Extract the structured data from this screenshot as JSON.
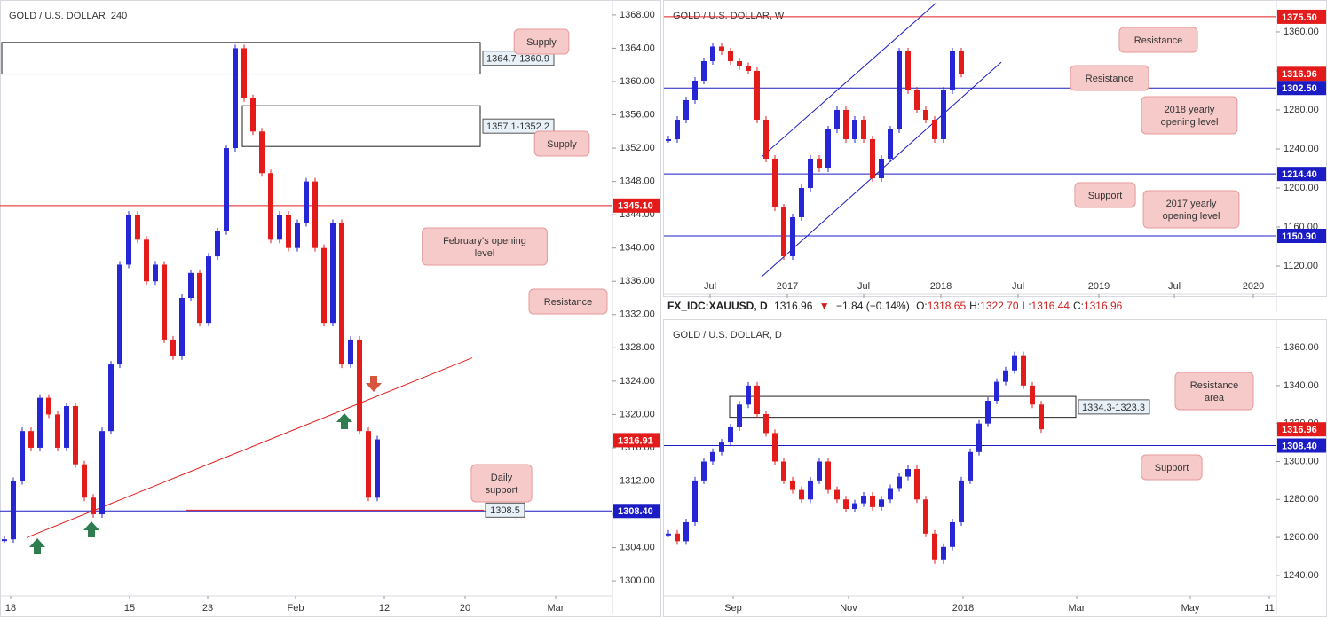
{
  "header": {
    "symbol": "FX_IDC:XAUUSD, D",
    "price": "1316.96",
    "arrow": "▼",
    "change": "−1.84 (−0.14%)",
    "ohlc": [
      {
        "key": "O:",
        "value": "1318.65"
      },
      {
        "key": "H:",
        "value": "1322.70"
      },
      {
        "key": "L:",
        "value": "1316.44"
      },
      {
        "key": "C:",
        "value": "1316.96"
      }
    ]
  },
  "chart_data": [
    {
      "type": "candlestick",
      "title": "GOLD / U.S. DOLLAR, 240",
      "up_color": "#2626d4",
      "down_color": "#e31b1b",
      "xlim": [
        0,
        69
      ],
      "ylim": [
        1298.2,
        1369.8
      ],
      "xticks": [
        {
          "value": 1.2,
          "label": "18"
        },
        {
          "value": 14.6,
          "label": "15"
        },
        {
          "value": 23.4,
          "label": "23"
        },
        {
          "value": 33.3,
          "label": "Feb"
        },
        {
          "value": 43.3,
          "label": "12"
        },
        {
          "value": 52.4,
          "label": "20"
        },
        {
          "value": 62.6,
          "label": "Mar"
        }
      ],
      "yticks": [
        {
          "value": 1300,
          "label": "1300.00"
        },
        {
          "value": 1304,
          "label": "1304.00"
        },
        {
          "value": 1308,
          "label": "1308.00"
        },
        {
          "value": 1312,
          "label": "1312.00"
        },
        {
          "value": 1316,
          "label": "1316.00"
        },
        {
          "value": 1320,
          "label": "1320.00"
        },
        {
          "value": 1324,
          "label": "1324.00"
        },
        {
          "value": 1328,
          "label": "1328.00"
        },
        {
          "value": 1332,
          "label": "1332.00"
        },
        {
          "value": 1336,
          "label": "1336.00"
        },
        {
          "value": 1340,
          "label": "1340.00"
        },
        {
          "value": 1344,
          "label": "1344.00"
        },
        {
          "value": 1348,
          "label": "1348.00"
        },
        {
          "value": 1352,
          "label": "1352.00"
        },
        {
          "value": 1356,
          "label": "1356.00"
        },
        {
          "value": 1360,
          "label": "1360.00"
        },
        {
          "value": 1364,
          "label": "1364.00"
        },
        {
          "value": 1368,
          "label": "1368.00"
        }
      ],
      "closes": [
        1305,
        1312,
        1318,
        1316,
        1322,
        1320,
        1316,
        1321,
        1314,
        1310,
        1308,
        1318,
        1326,
        1338,
        1344,
        1341,
        1336,
        1338,
        1329,
        1327,
        1334,
        1337,
        1331,
        1339,
        1342,
        1352,
        1364,
        1358,
        1354,
        1349,
        1341,
        1344,
        1340,
        1343,
        1348,
        1340,
        1331,
        1343,
        1326,
        1329,
        1318,
        1310,
        1317
      ],
      "zones": [
        {
          "label": "1364.7-1360.9",
          "top": 1364.7,
          "bottom": 1360.9,
          "x_range": [
            0.2,
            54.1
          ]
        },
        {
          "label": "1357.1-1352.2",
          "top": 1357.1,
          "bottom": 1352.2,
          "x_range": [
            27.3,
            54.1
          ]
        }
      ],
      "levels": [
        {
          "value": 1345.1,
          "label": "1345.10",
          "color": "#e31b1b",
          "tag": "axis",
          "line": true
        },
        {
          "value": 1316.91,
          "label": "1316.91",
          "color": "#e31b1b",
          "tag": "axis",
          "line": false
        },
        {
          "value": 1308.4,
          "label": "1308.40",
          "color": "#1c1cc4",
          "tag": "axis",
          "line": true
        },
        {
          "value": 1308.5,
          "label": "1308.5",
          "color": "#e31b1b",
          "tag": "inline",
          "line": true,
          "x_range": [
            21,
            54.5
          ]
        }
      ],
      "trendlines": [
        {
          "x": [
            3,
            53.2
          ],
          "y": [
            1305.2,
            1326.8
          ],
          "color": "#e31b1b"
        }
      ],
      "annotations": [
        [
          "Supply"
        ],
        [
          "Supply"
        ],
        [
          "February's opening",
          "level"
        ],
        [
          "Resistance"
        ],
        [
          "Daily",
          "support"
        ]
      ]
    },
    {
      "type": "candlestick",
      "title": "GOLD / U.S. DOLLAR, W",
      "up_color": "#2626d4",
      "down_color": "#e31b1b",
      "xlim": [
        0,
        69
      ],
      "ylim": [
        1090.9,
        1392.7
      ],
      "xticks": [
        {
          "value": 5.2,
          "label": "Jul"
        },
        {
          "value": 13.9,
          "label": "2017"
        },
        {
          "value": 22.5,
          "label": "Jul"
        },
        {
          "value": 31.2,
          "label": "2018"
        },
        {
          "value": 39.9,
          "label": "Jul"
        },
        {
          "value": 49,
          "label": "2019"
        },
        {
          "value": 57.5,
          "label": "Jul"
        },
        {
          "value": 66.4,
          "label": "2020"
        }
      ],
      "yticks": [
        {
          "value": 1120,
          "label": "1120.00"
        },
        {
          "value": 1160,
          "label": "1160.00"
        },
        {
          "value": 1200,
          "label": "1200.00"
        },
        {
          "value": 1240,
          "label": "1240.00"
        },
        {
          "value": 1280,
          "label": "1280.00"
        },
        {
          "value": 1320,
          "label": "1320.00"
        },
        {
          "value": 1360,
          "label": "1360.00"
        }
      ],
      "closes": [
        1250,
        1270,
        1290,
        1310,
        1330,
        1345,
        1340,
        1330,
        1325,
        1320,
        1270,
        1230,
        1180,
        1130,
        1170,
        1200,
        1230,
        1220,
        1260,
        1280,
        1250,
        1270,
        1250,
        1210,
        1230,
        1260,
        1340,
        1300,
        1280,
        1270,
        1250,
        1300,
        1340,
        1317
      ],
      "zones": [],
      "levels": [
        {
          "value": 1375.5,
          "label": "1375.50",
          "color": "#e31b1b",
          "tag": "axis",
          "line": true
        },
        {
          "value": 1316.96,
          "label": "1316.96",
          "color": "#e31b1b",
          "tag": "axis",
          "line": false
        },
        {
          "value": 1302.5,
          "label": "1302.50",
          "color": "#1c1cc4",
          "tag": "axis",
          "line": true
        },
        {
          "value": 1214.4,
          "label": "1214.40",
          "color": "#1c1cc4",
          "tag": "axis",
          "line": true
        },
        {
          "value": 1150.9,
          "label": "1150.90",
          "color": "#1c1cc4",
          "tag": "axis",
          "line": true
        }
      ],
      "trendlines": [
        {
          "x": [
            11,
            30.7
          ],
          "y": [
            1231.8,
            1390
          ],
          "color": "#1c1cc4"
        },
        {
          "x": [
            11,
            38
          ],
          "y": [
            1109,
            1329
          ],
          "color": "#1c1cc4"
        }
      ],
      "annotations": [
        [
          "Resistance"
        ],
        [
          "Resistance"
        ],
        [
          "2018 yearly",
          "opening level"
        ],
        [
          "Support"
        ],
        [
          "2017 yearly",
          "opening level"
        ]
      ]
    },
    {
      "type": "candlestick",
      "title": "GOLD / U.S. DOLLAR, D",
      "up_color": "#2626d4",
      "down_color": "#e31b1b",
      "xlim": [
        0,
        69
      ],
      "ylim": [
        1229.2,
        1375
      ],
      "xticks": [
        {
          "value": 7.8,
          "label": "Sep"
        },
        {
          "value": 20.8,
          "label": "Nov"
        },
        {
          "value": 33.7,
          "label": "2018"
        },
        {
          "value": 46.5,
          "label": "Mar"
        },
        {
          "value": 59.3,
          "label": "May"
        },
        {
          "value": 68.2,
          "label": "11"
        }
      ],
      "yticks": [
        {
          "value": 1240,
          "label": "1240.00"
        },
        {
          "value": 1260,
          "label": "1260.00"
        },
        {
          "value": 1280,
          "label": "1280.00"
        },
        {
          "value": 1300,
          "label": "1300.00"
        },
        {
          "value": 1320,
          "label": "1320.00"
        },
        {
          "value": 1340,
          "label": "1340.00"
        },
        {
          "value": 1360,
          "label": "1360.00"
        }
      ],
      "closes": [
        1262,
        1258,
        1268,
        1290,
        1300,
        1305,
        1310,
        1318,
        1330,
        1340,
        1325,
        1315,
        1300,
        1290,
        1285,
        1280,
        1290,
        1300,
        1285,
        1280,
        1275,
        1278,
        1282,
        1276,
        1280,
        1286,
        1292,
        1296,
        1280,
        1262,
        1248,
        1255,
        1268,
        1290,
        1305,
        1320,
        1332,
        1342,
        1348,
        1356,
        1340,
        1330,
        1317
      ],
      "zones": [
        {
          "label": "1334.3-1323.3",
          "top": 1334.3,
          "bottom": 1323.3,
          "x_range": [
            7.4,
            46.4
          ]
        }
      ],
      "levels": [
        {
          "value": 1316.96,
          "label": "1316.96",
          "color": "#e31b1b",
          "tag": "axis",
          "line": false
        },
        {
          "value": 1308.4,
          "label": "1308.40",
          "color": "#1c1cc4",
          "tag": "axis",
          "line": true
        }
      ],
      "trendlines": [],
      "annotations": [
        [
          "Resistance",
          "area"
        ],
        [
          "Support"
        ]
      ]
    }
  ]
}
